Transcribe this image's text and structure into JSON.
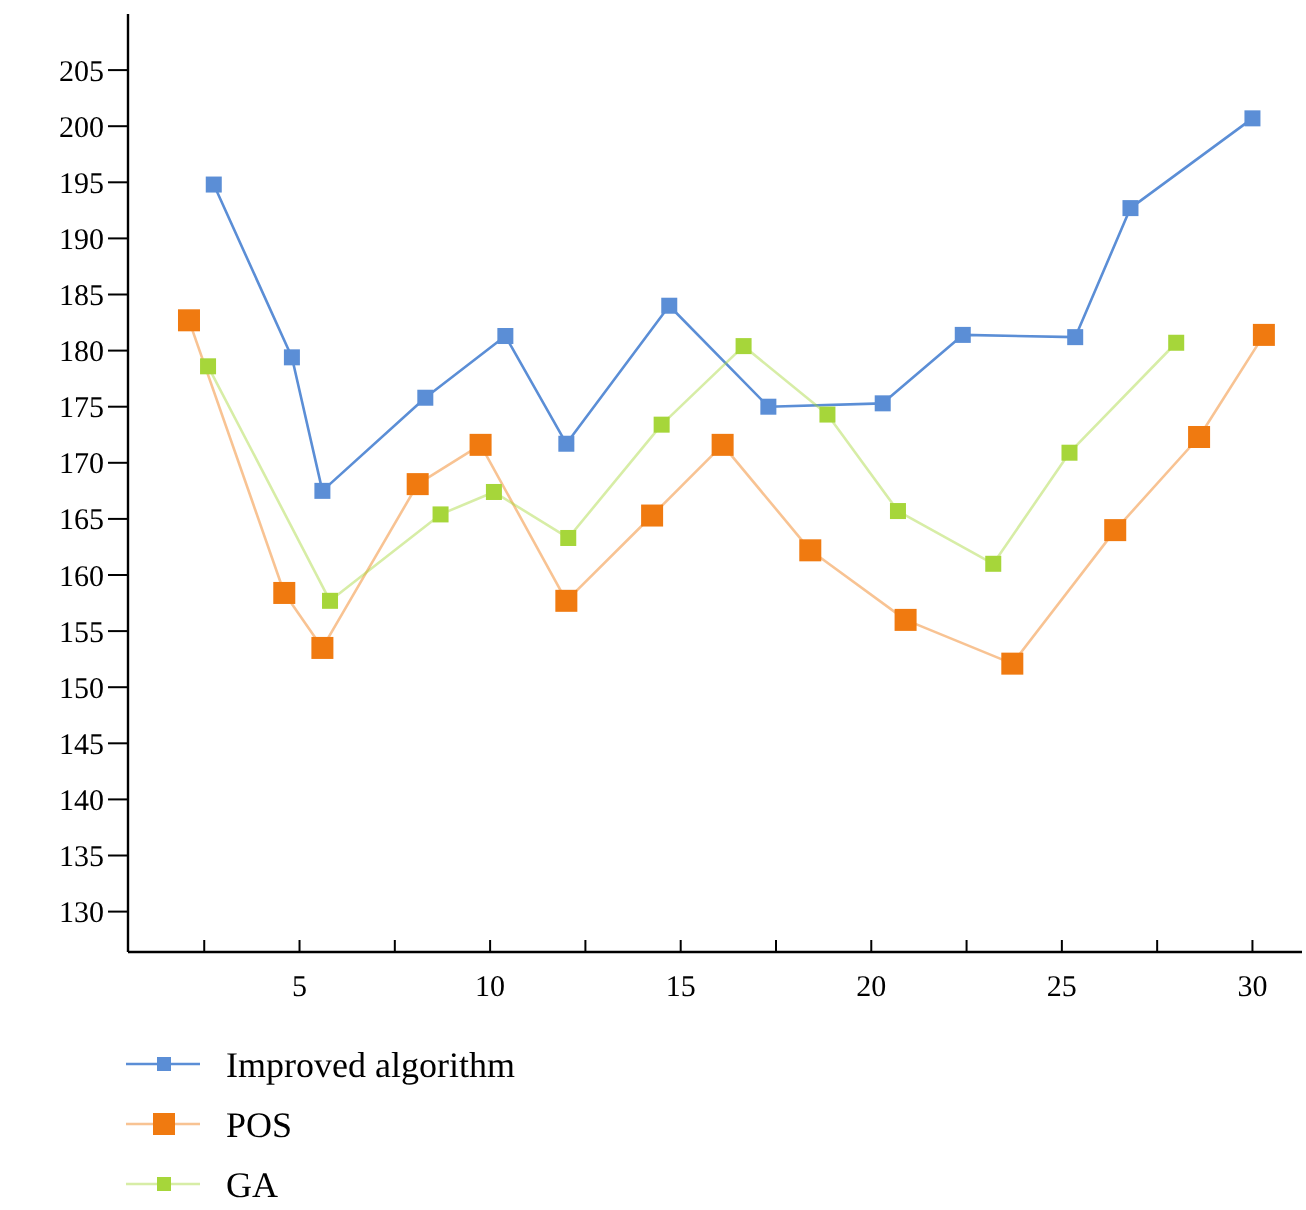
{
  "chart_data": {
    "type": "line",
    "marker": "square",
    "line_style": "solid",
    "grid": false,
    "legend": "bottom left",
    "xlim": [
      0.5,
      31.3
    ],
    "ylim": [
      126.4,
      210
    ],
    "xticks": [
      {
        "value": 2.5,
        "label": null
      },
      5,
      {
        "value": 7.5,
        "label": null
      },
      10,
      {
        "value": 12.5,
        "label": null
      },
      15,
      {
        "value": 17.5,
        "label": null
      },
      20,
      {
        "value": 22.5,
        "label": null
      },
      25,
      {
        "value": 27.5,
        "label": null
      },
      30
    ],
    "yticks": [
      130,
      135,
      140,
      145,
      150,
      155,
      160,
      165,
      170,
      175,
      180,
      185,
      190,
      195,
      200,
      205
    ],
    "series": [
      {
        "name": "Improved algorithm",
        "color": "#5b8ed6",
        "x": [
          2.75,
          4.8,
          5.6,
          8.3,
          10.4,
          12.0,
          14.7,
          17.3,
          20.3,
          22.4,
          25.35,
          26.8,
          30.0
        ],
        "values": [
          194.8,
          179.4,
          167.5,
          175.8,
          181.3,
          171.7,
          184.0,
          175.0,
          175.3,
          181.4,
          181.2,
          192.7,
          200.7
        ]
      },
      {
        "name": "POS",
        "color": "#f07a10",
        "x": [
          2.1,
          4.6,
          5.6,
          8.1,
          9.75,
          12.0,
          14.25,
          16.1,
          18.4,
          20.9,
          23.7,
          26.4,
          28.6,
          30.3
        ],
        "values": [
          182.7,
          158.4,
          153.5,
          168.1,
          171.6,
          157.7,
          165.3,
          171.6,
          162.2,
          156.0,
          152.1,
          164.0,
          172.3,
          181.4
        ]
      },
      {
        "name": "GA",
        "color": "#a6d63a",
        "x": [
          2.6,
          5.8,
          8.7,
          10.1,
          12.05,
          14.5,
          16.65,
          18.85,
          20.7,
          23.2,
          25.2,
          28.0
        ],
        "values": [
          178.6,
          157.7,
          165.4,
          167.4,
          163.3,
          173.4,
          180.4,
          174.3,
          165.7,
          161.0,
          170.9,
          180.7
        ]
      }
    ]
  }
}
